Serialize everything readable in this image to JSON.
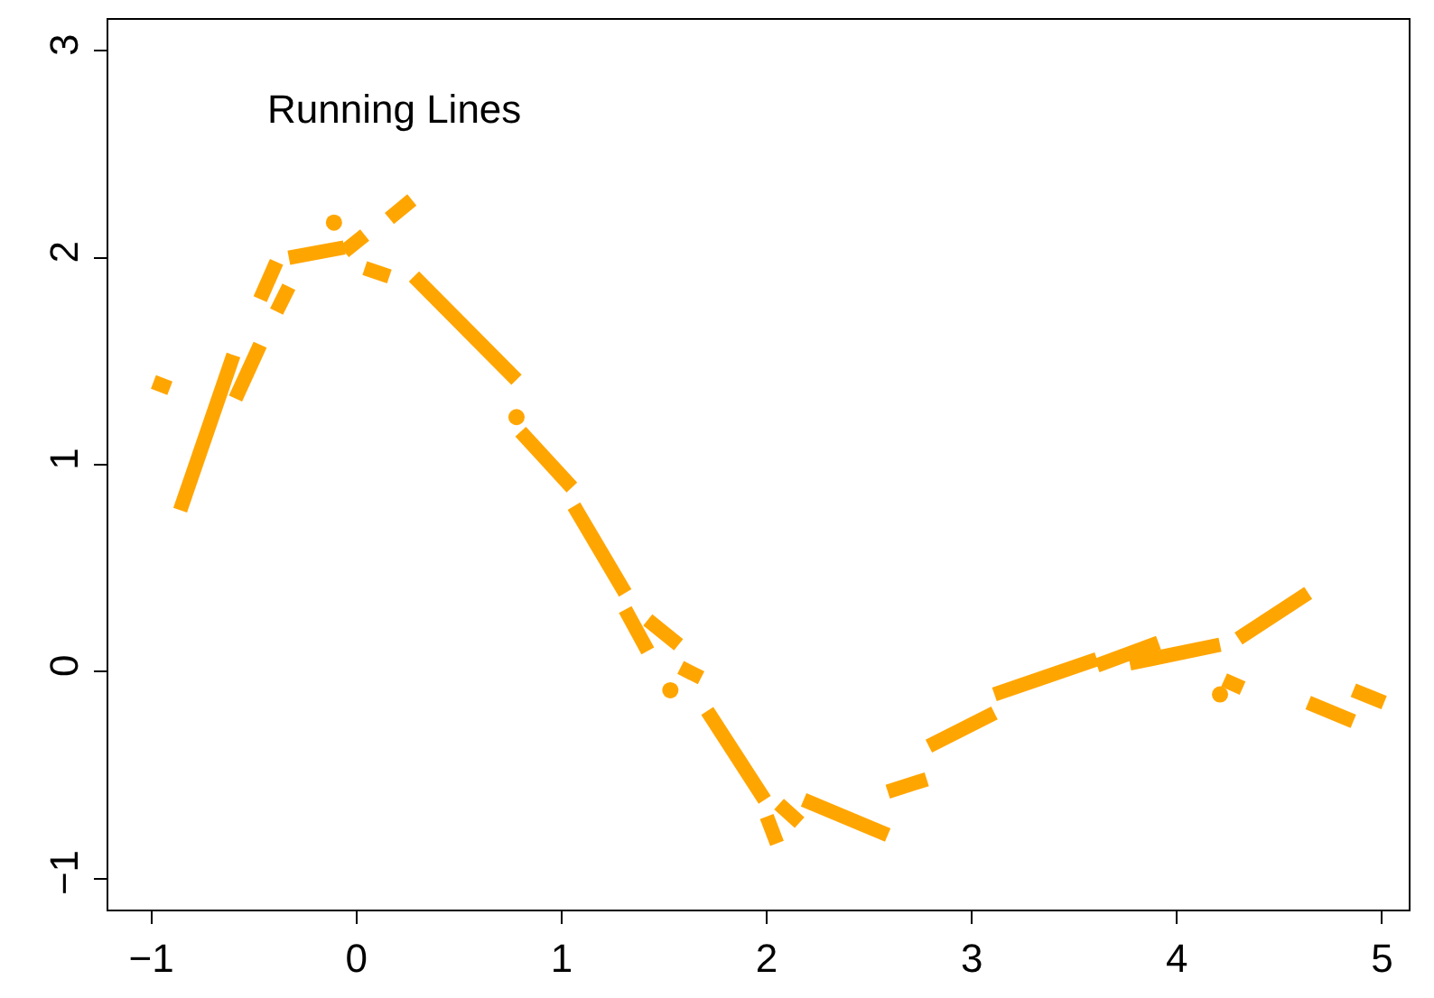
{
  "chart_data": {
    "type": "line",
    "title": "Running Lines",
    "xlim": [
      -1.21,
      5.13
    ],
    "ylim": [
      -1.15,
      3.15
    ],
    "xticks": [
      -1,
      0,
      1,
      2,
      3,
      4,
      5
    ],
    "yticks": [
      -1,
      0,
      1,
      2,
      3
    ],
    "line_style": "solid",
    "marker": "none",
    "series": [
      {
        "color": "#ffa500",
        "x": [
          -0.99,
          -0.91
        ],
        "values": [
          1.4,
          1.37
        ]
      },
      {
        "color": "#ffa500",
        "x": [
          -0.86,
          -0.6
        ],
        "values": [
          0.78,
          1.53
        ]
      },
      {
        "color": "#ffa500",
        "x": [
          -0.59,
          -0.47
        ],
        "values": [
          1.32,
          1.58
        ]
      },
      {
        "color": "#ffa500",
        "x": [
          -0.47,
          -0.39
        ],
        "values": [
          1.8,
          1.98
        ]
      },
      {
        "color": "#ffa500",
        "x": [
          -0.39,
          -0.33
        ],
        "values": [
          1.74,
          1.86
        ]
      },
      {
        "color": "#ffa500",
        "x": [
          -0.33,
          -0.06
        ],
        "values": [
          2.0,
          2.05
        ]
      },
      {
        "color": "#ffa500",
        "x": [
          -0.06,
          0.04
        ],
        "values": [
          2.03,
          2.11
        ]
      },
      {
        "color": "#ffa500",
        "x": [
          0.16,
          0.27
        ],
        "values": [
          2.19,
          2.28
        ]
      },
      {
        "color": "#ffa500",
        "x": [
          0.04,
          0.16
        ],
        "values": [
          1.95,
          1.91
        ]
      },
      {
        "color": "#ffa500",
        "x": [
          0.28,
          0.78
        ],
        "values": [
          1.91,
          1.41
        ]
      },
      {
        "color": "#ffa500",
        "x": [
          0.8,
          1.05
        ],
        "values": [
          1.16,
          0.89
        ]
      },
      {
        "color": "#ffa500",
        "x": [
          1.06,
          1.31
        ],
        "values": [
          0.8,
          0.38
        ]
      },
      {
        "color": "#ffa500",
        "x": [
          1.31,
          1.42
        ],
        "values": [
          0.3,
          0.1
        ]
      },
      {
        "color": "#ffa500",
        "x": [
          1.42,
          1.57
        ],
        "values": [
          0.25,
          0.13
        ]
      },
      {
        "color": "#ffa500",
        "x": [
          1.58,
          1.68
        ],
        "values": [
          0.02,
          -0.03
        ]
      },
      {
        "color": "#ffa500",
        "x": [
          1.71,
          1.99
        ],
        "values": [
          -0.19,
          -0.62
        ]
      },
      {
        "color": "#ffa500",
        "x": [
          2.0,
          2.05
        ],
        "values": [
          -0.7,
          -0.83
        ]
      },
      {
        "color": "#ffa500",
        "x": [
          2.06,
          2.16
        ],
        "values": [
          -0.64,
          -0.73
        ]
      },
      {
        "color": "#ffa500",
        "x": [
          2.18,
          2.59
        ],
        "values": [
          -0.62,
          -0.79
        ]
      },
      {
        "color": "#ffa500",
        "x": [
          2.59,
          2.78
        ],
        "values": [
          -0.58,
          -0.52
        ]
      },
      {
        "color": "#ffa500",
        "x": [
          2.79,
          3.11
        ],
        "values": [
          -0.36,
          -0.2
        ]
      },
      {
        "color": "#ffa500",
        "x": [
          3.11,
          3.61
        ],
        "values": [
          -0.11,
          0.06
        ]
      },
      {
        "color": "#ffa500",
        "x": [
          3.61,
          3.91
        ],
        "values": [
          0.03,
          0.14
        ]
      },
      {
        "color": "#ffa500",
        "x": [
          3.77,
          4.21
        ],
        "values": [
          0.04,
          0.13
        ]
      },
      {
        "color": "#ffa500",
        "x": [
          4.23,
          4.32
        ],
        "values": [
          -0.04,
          -0.08
        ]
      },
      {
        "color": "#ffa500",
        "x": [
          4.3,
          4.64
        ],
        "values": [
          0.16,
          0.38
        ]
      },
      {
        "color": "#ffa500",
        "x": [
          4.64,
          4.86
        ],
        "values": [
          -0.15,
          -0.24
        ]
      },
      {
        "color": "#ffa500",
        "x": [
          4.86,
          5.01
        ],
        "values": [
          -0.09,
          -0.15
        ]
      },
      {
        "type": "scatter",
        "marker": "circle",
        "color": "#ffa500",
        "x": [
          -0.11,
          0.78,
          1.53,
          4.21
        ],
        "values": [
          2.17,
          1.23,
          -0.09,
          -0.11
        ]
      }
    ]
  }
}
